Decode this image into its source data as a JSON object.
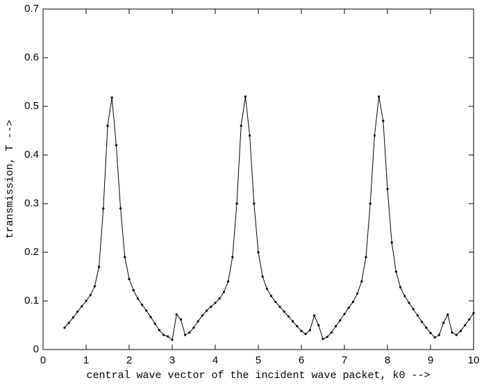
{
  "chart_data": {
    "type": "line",
    "xlabel": "central wave vector of the incident wave packet, k0 -->",
    "ylabel": "transmission, T -->",
    "x": [
      0.5,
      0.6,
      0.7,
      0.8,
      0.9,
      1.0,
      1.1,
      1.2,
      1.3,
      1.4,
      1.5,
      1.6,
      1.7,
      1.8,
      1.9,
      2.0,
      2.1,
      2.2,
      2.3,
      2.4,
      2.5,
      2.6,
      2.7,
      2.8,
      2.9,
      3.0,
      3.1,
      3.2,
      3.3,
      3.4,
      3.5,
      3.6,
      3.7,
      3.8,
      3.9,
      4.0,
      4.1,
      4.2,
      4.3,
      4.4,
      4.5,
      4.6,
      4.7,
      4.8,
      4.9,
      5.0,
      5.1,
      5.2,
      5.3,
      5.4,
      5.5,
      5.6,
      5.7,
      5.8,
      5.9,
      6.0,
      6.1,
      6.2,
      6.3,
      6.4,
      6.5,
      6.6,
      6.7,
      6.8,
      6.9,
      7.0,
      7.1,
      7.2,
      7.3,
      7.4,
      7.5,
      7.6,
      7.7,
      7.8,
      7.9,
      8.0,
      8.1,
      8.2,
      8.3,
      8.4,
      8.5,
      8.6,
      8.7,
      8.8,
      8.9,
      9.0,
      9.1,
      9.2,
      9.3,
      9.4,
      9.5,
      9.6,
      9.7,
      9.8,
      9.9,
      10.0
    ],
    "series": [
      {
        "color": "#000000",
        "values": [
          0.045,
          0.055,
          0.066,
          0.078,
          0.089,
          0.1,
          0.112,
          0.13,
          0.17,
          0.29,
          0.46,
          0.518,
          0.42,
          0.29,
          0.19,
          0.145,
          0.122,
          0.105,
          0.092,
          0.08,
          0.067,
          0.053,
          0.04,
          0.03,
          0.027,
          0.02,
          0.072,
          0.062,
          0.03,
          0.035,
          0.045,
          0.058,
          0.07,
          0.08,
          0.088,
          0.096,
          0.105,
          0.118,
          0.14,
          0.19,
          0.3,
          0.46,
          0.52,
          0.44,
          0.3,
          0.2,
          0.15,
          0.125,
          0.11,
          0.098,
          0.088,
          0.078,
          0.068,
          0.058,
          0.048,
          0.038,
          0.032,
          0.04,
          0.07,
          0.05,
          0.022,
          0.026,
          0.035,
          0.048,
          0.06,
          0.073,
          0.086,
          0.098,
          0.115,
          0.14,
          0.19,
          0.3,
          0.44,
          0.52,
          0.47,
          0.33,
          0.22,
          0.16,
          0.128,
          0.11,
          0.096,
          0.083,
          0.07,
          0.057,
          0.045,
          0.034,
          0.025,
          0.03,
          0.055,
          0.072,
          0.035,
          0.03,
          0.038,
          0.05,
          0.062,
          0.075
        ]
      }
    ],
    "xlim": [
      0,
      10
    ],
    "xticks": [
      0,
      1,
      2,
      3,
      4,
      5,
      6,
      7,
      8,
      9,
      10
    ],
    "ylim": [
      0,
      0.7
    ],
    "yticks": [
      0,
      0.1,
      0.2,
      0.3,
      0.4,
      0.5,
      0.6,
      0.7
    ]
  }
}
